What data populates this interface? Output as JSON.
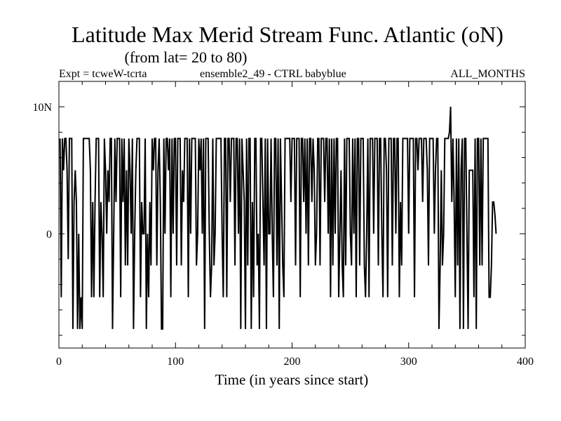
{
  "chart_data": {
    "type": "line",
    "title": "Latitude Max Merid Stream Func. Atlantic (oN)",
    "subtitle": "(from lat= 20 to 80)",
    "info_left": "Expt = tcweW-tcrta",
    "info_center": "ensemble2_49 - CTRL babyblue",
    "info_right": "ALL_MONTHS",
    "xlabel": "Time (in years since start)",
    "ylabel": "",
    "xlim": [
      0,
      400
    ],
    "ylim": [
      -9,
      12
    ],
    "x_ticks": [
      {
        "value": 0,
        "label": "0"
      },
      {
        "value": 100,
        "label": "100"
      },
      {
        "value": 200,
        "label": "200"
      },
      {
        "value": 300,
        "label": "300"
      },
      {
        "value": 400,
        "label": "400"
      }
    ],
    "y_ticks": [
      {
        "value": 10,
        "label": "10N"
      },
      {
        "value": 0,
        "label": "0"
      }
    ],
    "x_minor_step": 20,
    "y_minor_step": 2,
    "grid": false,
    "series": [
      {
        "color": "#000000",
        "x_start": 1,
        "x_step": 1,
        "values": [
          7.5,
          -5,
          7.5,
          5,
          7.5,
          7.5,
          5,
          -2,
          7.5,
          7.5,
          7.5,
          -7.5,
          2.5,
          5,
          2.5,
          -7.5,
          0,
          -7.5,
          -5,
          -7.5,
          7.5,
          7.5,
          7.5,
          7.5,
          7.5,
          7.5,
          5,
          -5,
          2.5,
          -5,
          2.5,
          7.5,
          7.5,
          7.5,
          -5,
          2.5,
          0,
          -5,
          7.5,
          5,
          0,
          5,
          2.5,
          7.5,
          7.5,
          -7.5,
          0,
          7.5,
          2.5,
          7.5,
          7.5,
          7.5,
          -5,
          7.5,
          2.5,
          7.5,
          -2.5,
          5,
          -2.5,
          7.5,
          5,
          0,
          7.5,
          -7.5,
          0,
          5,
          7.5,
          7.5,
          7.5,
          -5,
          2.5,
          0,
          0,
          7.5,
          -7.5,
          0,
          -5,
          2.5,
          -2.5,
          7.5,
          5,
          7.5,
          7.5,
          -2.5,
          5,
          7.5,
          2.5,
          -7.5,
          -7.5,
          7.5,
          0,
          7.5,
          7.5,
          5,
          7.5,
          -5,
          7.5,
          0,
          7.5,
          7.5,
          -2.5,
          7.5,
          7.5,
          7.5,
          -2.5,
          5,
          2.5,
          7.5,
          7.5,
          7.5,
          -5,
          7.5,
          0,
          7.5,
          7.5,
          7.5,
          7.5,
          -2.5,
          0,
          7.5,
          5,
          7.5,
          0,
          7.5,
          -7.5,
          7.5,
          7.5,
          7.5,
          0,
          -5,
          -2.5,
          7.5,
          -2.5,
          0,
          7.5,
          7.5,
          7.5,
          7.5,
          7.5,
          0,
          -5,
          7.5,
          7.5,
          -5,
          7.5,
          7.5,
          2.5,
          7.5,
          7.5,
          7.5,
          -2.5,
          7.5,
          7.5,
          0,
          7.5,
          -7.5,
          7.5,
          5,
          2.5,
          -7.5,
          7.5,
          -2.5,
          7.5,
          7.5,
          -7.5,
          2.5,
          -5,
          7.5,
          7.5,
          -2.5,
          0,
          -7.5,
          7.5,
          7.5,
          2.5,
          -2.5,
          7.5,
          -7.5,
          7.5,
          0,
          0,
          7.5,
          0,
          -5,
          7.5,
          7.5,
          -2.5,
          7.5,
          -7.5,
          7.5,
          2.5,
          -2.5,
          -5,
          7.5,
          7.5,
          7.5,
          7.5,
          7.5,
          2.5,
          7.5,
          7.5,
          7.5,
          -2.5,
          7.5,
          7.5,
          7.5,
          -5,
          7.5,
          7.5,
          2.5,
          7.5,
          0,
          7.5,
          -2.5,
          7.5,
          7.5,
          2.5,
          7.5,
          5,
          -2.5,
          0,
          7.5,
          7.5,
          -2.5,
          7.5,
          7.5,
          7.5,
          2.5,
          7.5,
          7.5,
          0,
          7.5,
          -5,
          7.5,
          -2.5,
          7.5,
          0,
          7.5,
          7.5,
          -5,
          0,
          5,
          -2.5,
          -5,
          7.5,
          -2.5,
          7.5,
          7.5,
          7.5,
          0,
          -2.5,
          7.5,
          0,
          7.5,
          -5,
          7.5,
          7.5,
          -2.5,
          7.5,
          7.5,
          7.5,
          -2.5,
          -5,
          0,
          7.5,
          -5,
          7.5,
          7.5,
          7.5,
          0,
          7.5,
          7.5,
          7.5,
          -2.5,
          7.5,
          7.5,
          0,
          -5,
          7.5,
          7.5,
          5,
          -5,
          7.5,
          7.5,
          7.5,
          -2.5,
          7.5,
          7.5,
          0,
          7.5,
          7.5,
          -5,
          2.5,
          -2.5,
          7.5,
          7.5,
          7.5,
          7.5,
          7.5,
          0,
          7.5,
          7.5,
          7.5,
          7.5,
          -5,
          7.5,
          7.5,
          5,
          7.5,
          7.5,
          7.5,
          2.5,
          7.5,
          7.5,
          7.5,
          5,
          -2.5,
          7.5,
          7.5,
          7.5,
          7.5,
          0,
          5,
          7.5,
          7.5,
          -7.5,
          -2.5,
          5,
          -2.5,
          0,
          7.5,
          7.5,
          7.5,
          7.5,
          8,
          10,
          2.5,
          7.5,
          2.5,
          -5,
          7.5,
          -2.5,
          7.5,
          -7.5,
          5,
          7.5,
          -7.5,
          7.5,
          7.5,
          0,
          -7.5,
          5,
          5,
          5,
          5,
          -5,
          7.5,
          -7.5,
          7.5,
          7.5,
          -2.5,
          7.5,
          -2.5,
          7.5,
          7.5,
          7.5,
          7.5,
          7.5,
          -5,
          -5,
          -2.5,
          2.5,
          2.5,
          1.5,
          0
        ]
      }
    ]
  }
}
